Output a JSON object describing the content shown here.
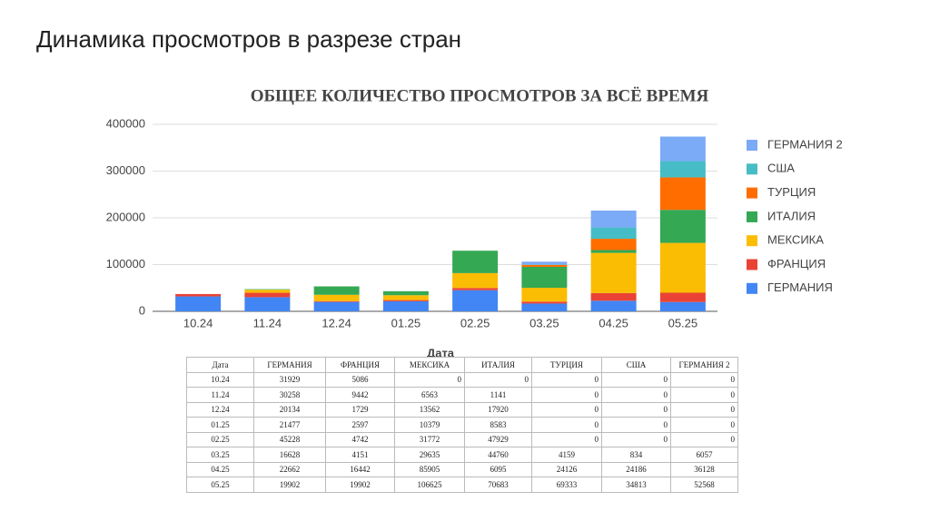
{
  "page_title": "Динамика просмотров в разрезе стран",
  "chart_data": {
    "type": "stacked_bar",
    "title": "ОБЩЕЕ КОЛИЧЕСТВО ПРОСМОТРОВ ЗА ВСЁ ВРЕМЯ",
    "x_label": "Дата",
    "categories": [
      "10.24",
      "11.24",
      "12.24",
      "01.25",
      "02.25",
      "03.25",
      "04.25",
      "05.25"
    ],
    "series": [
      {
        "name": "ГЕРМАНИЯ",
        "color": "#4285f4",
        "values": [
          31929,
          30258,
          20134,
          21477,
          45228,
          16628,
          22662,
          19902
        ]
      },
      {
        "name": "ФРАНЦИЯ",
        "color": "#ea4335",
        "values": [
          5086,
          9442,
          1729,
          2597,
          4742,
          4151,
          16442,
          19902
        ]
      },
      {
        "name": "МЕКСИКА",
        "color": "#fbbc04",
        "values": [
          0,
          6563,
          13562,
          10379,
          31772,
          29635,
          85905,
          106625
        ]
      },
      {
        "name": "ИТАЛИЯ",
        "color": "#34a853",
        "values": [
          0,
          1141,
          17920,
          8583,
          47929,
          44760,
          6095,
          70683
        ]
      },
      {
        "name": "ТУРЦИЯ",
        "color": "#ff6d01",
        "values": [
          0,
          0,
          0,
          0,
          0,
          4159,
          24126,
          69333
        ]
      },
      {
        "name": "США",
        "color": "#46bdc6",
        "values": [
          0,
          0,
          0,
          0,
          0,
          834,
          24186,
          34813
        ]
      },
      {
        "name": "ГЕРМАНИЯ 2",
        "color": "#7baaf7",
        "values": [
          0,
          0,
          0,
          0,
          0,
          6057,
          36128,
          52568
        ]
      }
    ],
    "ylim": [
      0,
      400000
    ],
    "yticks": [
      0,
      100000,
      200000,
      300000,
      400000
    ],
    "grid": true,
    "legend": "right"
  }
}
